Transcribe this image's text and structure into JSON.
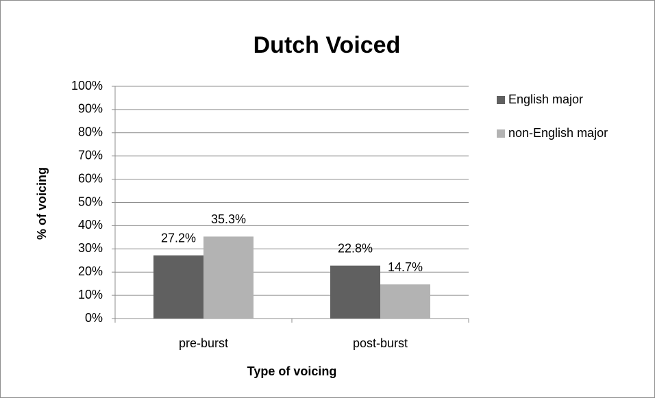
{
  "chart_data": {
    "type": "bar",
    "title": "Dutch Voiced",
    "x_label": "Type of voicing",
    "y_label": "% of voicing",
    "categories": [
      "pre-burst",
      "post-burst"
    ],
    "series": [
      {
        "name": "English major",
        "color": "#606060",
        "values": [
          27.2,
          22.8
        ],
        "value_labels": [
          "27.2%",
          "22.8%"
        ]
      },
      {
        "name": "non-English major",
        "color": "#b3b3b3",
        "values": [
          35.3,
          14.7
        ],
        "value_labels": [
          "35.3%",
          "14.7%"
        ]
      }
    ],
    "ylim": [
      0,
      100
    ],
    "yticks": [
      {
        "value": 0,
        "label": "0%"
      },
      {
        "value": 10,
        "label": "10%"
      },
      {
        "value": 20,
        "label": "20%"
      },
      {
        "value": 30,
        "label": "30%"
      },
      {
        "value": 40,
        "label": "40%"
      },
      {
        "value": 50,
        "label": "50%"
      },
      {
        "value": 60,
        "label": "60%"
      },
      {
        "value": 70,
        "label": "70%"
      },
      {
        "value": 80,
        "label": "80%"
      },
      {
        "value": 90,
        "label": "90%"
      },
      {
        "value": 100,
        "label": "100%"
      }
    ],
    "grid": true,
    "legend": "right"
  }
}
